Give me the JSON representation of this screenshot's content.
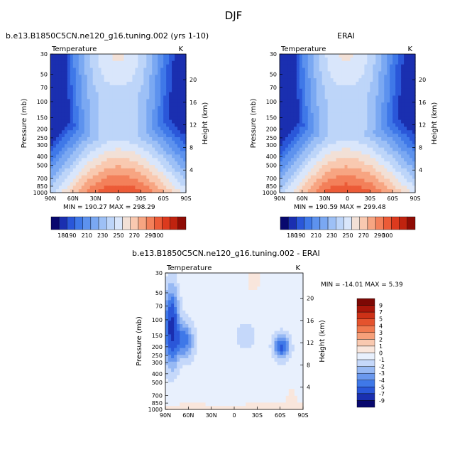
{
  "page_title": "DJF",
  "panels": {
    "model": {
      "title": "b.e13.B1850C5CN.ne120_g16.tuning.002 (yrs 1-10)",
      "left_string": "Temperature",
      "right_string": "K",
      "stats": "MIN = 190.27   MAX = 298.29"
    },
    "obs": {
      "title": "ERAI",
      "left_string": "Temperature",
      "right_string": "K",
      "stats": "MIN = 190.59   MAX = 299.48"
    },
    "diff": {
      "title": "b.e13.B1850C5CN.ne120_g16.tuning.002 - ERAI",
      "left_string": "Temperature",
      "right_string": "K",
      "stats": "MIN = -14.01   MAX =    5.39"
    }
  },
  "colors": {
    "abs_scale": [
      "#08086e",
      "#1a2fb0",
      "#2a57d9",
      "#3f78e8",
      "#5d92ee",
      "#7aa8f2",
      "#9dc0f6",
      "#bdd5f9",
      "#d9e6fb",
      "#f2e0d6",
      "#f9c9b0",
      "#f7a582",
      "#f3805a",
      "#ec5b37",
      "#dc3a1e",
      "#c0230f",
      "#8f0c05"
    ],
    "diff_scale": [
      "#08086e",
      "#1a2fb0",
      "#2a57d9",
      "#3f78e8",
      "#6a98ee",
      "#97b9f4",
      "#c5d8fa",
      "#e8f0fd",
      "#f9e6dc",
      "#f9c9b0",
      "#f6a07a",
      "#f07a50",
      "#e4532e",
      "#cd3117",
      "#a9160a",
      "#7d0804"
    ]
  },
  "chart_data": [
    {
      "type": "heatmap",
      "name_ref": "model",
      "title": "b.e13.B1850C5CN.ne120_g16.tuning.002 (yrs 1-10)",
      "left_string": "Temperature",
      "units": "K",
      "xlabel": "",
      "ylabel": "Pressure (mb)",
      "y2label": "Height (km)",
      "x_ticks": [
        "90N",
        "60N",
        "30N",
        "0",
        "30S",
        "60S",
        "90S"
      ],
      "y_ticks": [
        30,
        50,
        70,
        100,
        150,
        200,
        250,
        300,
        400,
        500,
        700,
        850,
        1000
      ],
      "y2_ticks": [
        20,
        16,
        12,
        8,
        4
      ],
      "xlim": [
        90,
        -90
      ],
      "ylim": [
        1000,
        30
      ],
      "y_scale": "log",
      "levels": [
        180,
        190,
        200,
        210,
        220,
        230,
        240,
        250,
        260,
        270,
        280,
        290,
        300
      ],
      "colorbar_labels": [
        "180",
        "190",
        "210",
        "230",
        "250",
        "270",
        "290",
        "300"
      ],
      "min": 190.27,
      "max": 298.29
    },
    {
      "type": "heatmap",
      "name_ref": "obs",
      "title": "ERAI",
      "left_string": "Temperature",
      "units": "K",
      "xlabel": "",
      "ylabel": "Pressure (mb)",
      "y2label": "Height (km)",
      "x_ticks": [
        "90N",
        "60N",
        "30N",
        "0",
        "30S",
        "60S",
        "90S"
      ],
      "y_ticks": [
        30,
        50,
        70,
        100,
        150,
        200,
        250,
        300,
        400,
        500,
        700,
        850,
        1000
      ],
      "y2_ticks": [
        20,
        16,
        12,
        8,
        4
      ],
      "xlim": [
        90,
        -90
      ],
      "ylim": [
        1000,
        30
      ],
      "y_scale": "log",
      "levels": [
        180,
        190,
        200,
        210,
        220,
        230,
        240,
        250,
        260,
        270,
        280,
        290,
        300
      ],
      "colorbar_labels": [
        "180",
        "190",
        "210",
        "230",
        "250",
        "270",
        "290",
        "300"
      ],
      "min": 190.59,
      "max": 299.48
    },
    {
      "type": "heatmap",
      "name_ref": "diff",
      "title": "b.e13.B1850C5CN.ne120_g16.tuning.002 - ERAI",
      "left_string": "Temperature",
      "units": "K",
      "xlabel": "",
      "ylabel": "Pressure (mb)",
      "y2label": "Height (km)",
      "x_ticks": [
        "90N",
        "60N",
        "30N",
        "0",
        "30S",
        "60S",
        "90S"
      ],
      "y_ticks": [
        30,
        50,
        70,
        100,
        150,
        200,
        250,
        300,
        400,
        500,
        700,
        850,
        1000
      ],
      "y2_ticks": [
        20,
        16,
        12,
        8,
        4
      ],
      "xlim": [
        90,
        -90
      ],
      "ylim": [
        1000,
        30
      ],
      "y_scale": "log",
      "colorbar_labels": [
        "9",
        "7",
        "5",
        "4",
        "3",
        "2",
        "1",
        "0",
        "-1",
        "-2",
        "-3",
        "-4",
        "-5",
        "-7",
        "-9"
      ],
      "min": -14.01,
      "max": 5.39
    }
  ]
}
